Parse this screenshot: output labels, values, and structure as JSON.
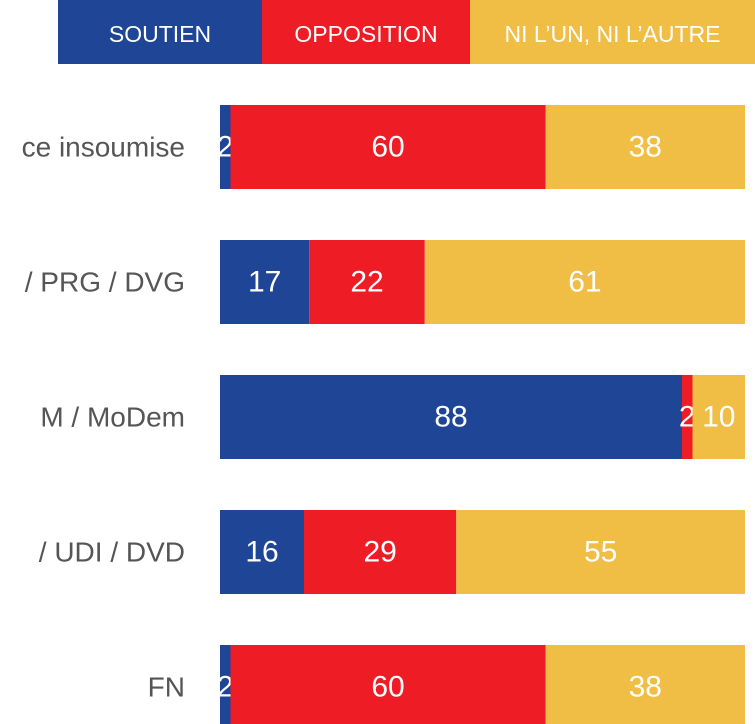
{
  "chart_data": {
    "type": "stacked-bar-horizontal",
    "categories": [
      "ce insoumise",
      "/ PRG / DVG",
      "M / MoDem",
      "/ UDI / DVD",
      "FN"
    ],
    "series": [
      {
        "name": "SOUTIEN",
        "color": "#1f4596",
        "values": [
          2,
          17,
          88,
          16,
          2
        ]
      },
      {
        "name": "OPPOSITION",
        "color": "#ee1c25",
        "values": [
          60,
          22,
          2,
          29,
          60
        ]
      },
      {
        "name": "NI L’UN, NI L’AUTRE",
        "color": "#f0bd45",
        "values": [
          38,
          61,
          10,
          55,
          38
        ]
      }
    ],
    "xlim": [
      0,
      100
    ]
  }
}
